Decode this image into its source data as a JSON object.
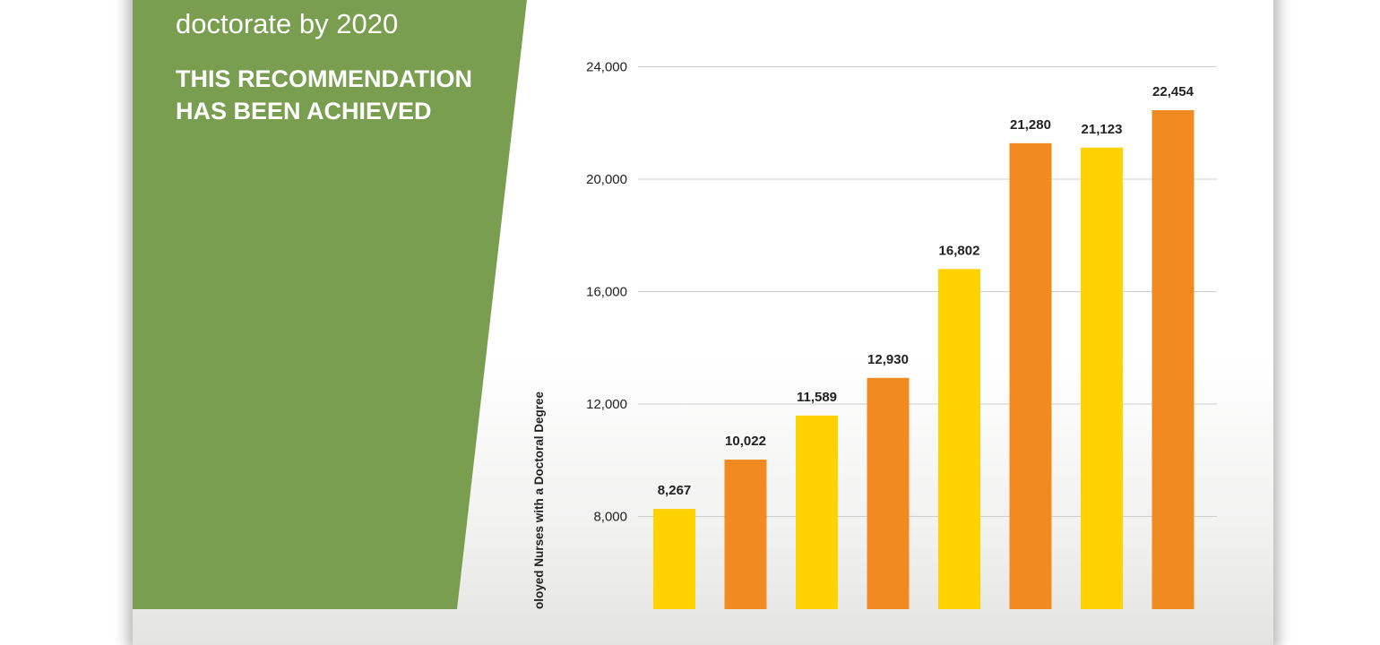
{
  "panel": {
    "subtitle": "doctorate by 2020",
    "achieved_line1": "THIS RECOMMENDATION",
    "achieved_line2": "HAS BEEN ACHIEVED",
    "color": "#7a9e50"
  },
  "chart_data": {
    "type": "bar",
    "ylabel": "oloyed Nurses with a Doctoral Degree",
    "y_ticks": [
      8000,
      12000,
      16000,
      20000,
      24000
    ],
    "y_tick_labels": [
      "8,000",
      "12,000",
      "16,000",
      "20,000",
      "24,000"
    ],
    "grid": true,
    "values": [
      8267,
      10022,
      11589,
      12930,
      16802,
      21280,
      21123,
      22454
    ],
    "value_labels": [
      "8,267",
      "10,022",
      "11,589",
      "12,930",
      "16,802",
      "21,280",
      "21,123",
      "22,454"
    ],
    "colors": [
      "#ffd200",
      "#f28a22",
      "#ffd200",
      "#f28a22",
      "#ffd200",
      "#f28a22",
      "#ffd200",
      "#f28a22"
    ]
  }
}
